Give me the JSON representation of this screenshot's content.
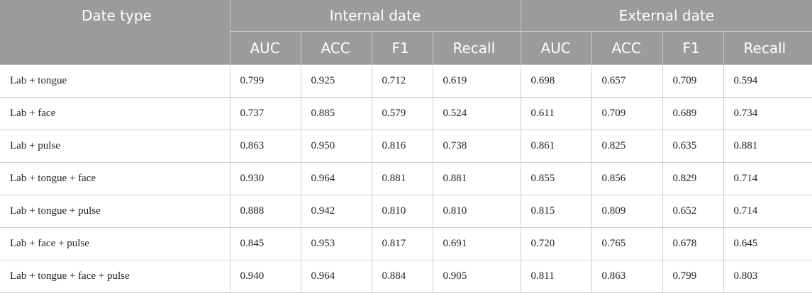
{
  "table": {
    "row_header": "Date type",
    "groups": [
      "Internal date",
      "External date"
    ],
    "metrics": [
      "AUC",
      "ACC",
      "F1",
      "Recall",
      "AUC",
      "ACC",
      "F1",
      "Recall"
    ],
    "rows": [
      {
        "label": "Lab + tongue",
        "values": [
          "0.799",
          "0.925",
          "0.712",
          "0.619",
          "0.698",
          "0.657",
          "0.709",
          "0.594"
        ]
      },
      {
        "label": "Lab + face",
        "values": [
          "0.737",
          "0.885",
          "0.579",
          "0.524",
          "0.611",
          "0.709",
          "0.689",
          "0.734"
        ]
      },
      {
        "label": "Lab + pulse",
        "values": [
          "0.863",
          "0.950",
          "0.816",
          "0.738",
          "0.861",
          "0.825",
          "0.635",
          "0.881"
        ]
      },
      {
        "label": "Lab + tongue + face",
        "values": [
          "0.930",
          "0.964",
          "0.881",
          "0.881",
          "0.855",
          "0.856",
          "0.829",
          "0.714"
        ]
      },
      {
        "label": "Lab + tongue + pulse",
        "values": [
          "0.888",
          "0.942",
          "0.810",
          "0.810",
          "0.815",
          "0.809",
          "0.652",
          "0.714"
        ]
      },
      {
        "label": "Lab + face + pulse",
        "values": [
          "0.845",
          "0.953",
          "0.817",
          "0.691",
          "0.720",
          "0.765",
          "0.678",
          "0.645"
        ]
      },
      {
        "label": "Lab + tongue + face + pulse",
        "values": [
          "0.940",
          "0.964",
          "0.884",
          "0.905",
          "0.811",
          "0.863",
          "0.799",
          "0.803"
        ]
      }
    ]
  }
}
